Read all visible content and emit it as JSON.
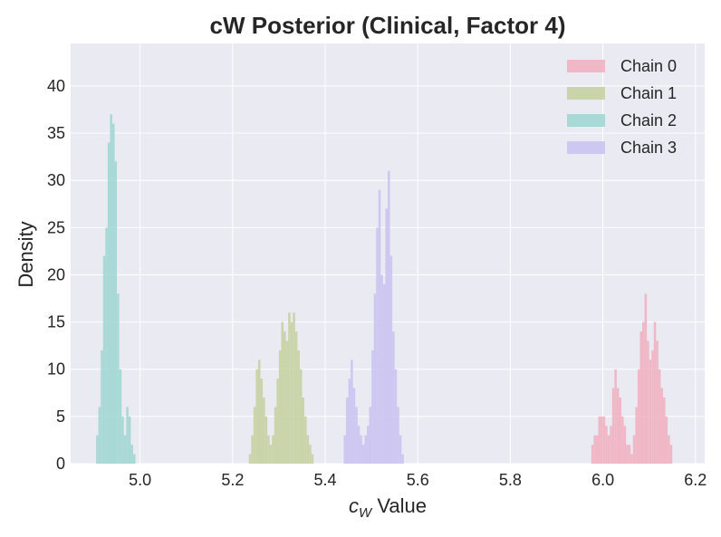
{
  "chart_data": {
    "type": "histogram",
    "title": "cW Posterior (Clinical, Factor 4)",
    "xlabel_var": "c",
    "xlabel_sub": "W",
    "xlabel_rest": " Value",
    "ylabel": "Density",
    "xlim": [
      4.85,
      6.22
    ],
    "ylim": [
      0,
      44.5
    ],
    "xticks": [
      5.0,
      5.2,
      5.4,
      5.6,
      5.8,
      6.0,
      6.2
    ],
    "xtick_labels": [
      "5.0",
      "5.2",
      "5.4",
      "5.6",
      "5.8",
      "6.0",
      "6.2"
    ],
    "yticks": [
      0,
      5,
      10,
      15,
      20,
      25,
      30,
      35,
      40
    ],
    "ytick_labels": [
      "0",
      "5",
      "10",
      "15",
      "20",
      "25",
      "30",
      "35",
      "40"
    ],
    "grid": true,
    "legend_position": "top-right",
    "colors": {
      "plot_background": "#eaeaf2",
      "grid": "#ffffff",
      "text": "#262626"
    },
    "series": [
      {
        "name": "Chain 0",
        "color": "#f1b2c1",
        "bins": [
          [
            5.975,
            2
          ],
          [
            5.98,
            3
          ],
          [
            5.985,
            3
          ],
          [
            5.99,
            5
          ],
          [
            5.995,
            5
          ],
          [
            6.0,
            5
          ],
          [
            6.005,
            4
          ],
          [
            6.01,
            3
          ],
          [
            6.015,
            4
          ],
          [
            6.02,
            8
          ],
          [
            6.025,
            10
          ],
          [
            6.03,
            8
          ],
          [
            6.035,
            7
          ],
          [
            6.04,
            5
          ],
          [
            6.045,
            4
          ],
          [
            6.05,
            2
          ],
          [
            6.055,
            2
          ],
          [
            6.06,
            1
          ],
          [
            6.065,
            3
          ],
          [
            6.07,
            6
          ],
          [
            6.075,
            10
          ],
          [
            6.08,
            14
          ],
          [
            6.085,
            15
          ],
          [
            6.09,
            18
          ],
          [
            6.095,
            13
          ],
          [
            6.1,
            11
          ],
          [
            6.105,
            12
          ],
          [
            6.11,
            15
          ],
          [
            6.115,
            13
          ],
          [
            6.12,
            10
          ],
          [
            6.125,
            8
          ],
          [
            6.13,
            7
          ],
          [
            6.135,
            5
          ],
          [
            6.14,
            3
          ],
          [
            6.145,
            2
          ]
        ]
      },
      {
        "name": "Chain 1",
        "color": "#c7d1a2",
        "bins": [
          [
            5.235,
            1
          ],
          [
            5.24,
            3
          ],
          [
            5.245,
            6
          ],
          [
            5.25,
            10
          ],
          [
            5.255,
            11
          ],
          [
            5.26,
            9
          ],
          [
            5.265,
            7
          ],
          [
            5.27,
            5
          ],
          [
            5.275,
            3
          ],
          [
            5.28,
            2
          ],
          [
            5.285,
            3
          ],
          [
            5.29,
            6
          ],
          [
            5.295,
            9
          ],
          [
            5.3,
            12
          ],
          [
            5.305,
            15
          ],
          [
            5.31,
            14
          ],
          [
            5.315,
            13
          ],
          [
            5.32,
            16
          ],
          [
            5.325,
            15
          ],
          [
            5.33,
            16
          ],
          [
            5.335,
            14
          ],
          [
            5.34,
            12
          ],
          [
            5.345,
            10
          ],
          [
            5.35,
            7
          ],
          [
            5.355,
            5
          ],
          [
            5.36,
            3
          ],
          [
            5.365,
            2
          ],
          [
            5.37,
            1
          ]
        ]
      },
      {
        "name": "Chain 2",
        "color": "#a2d7d3",
        "bins": [
          [
            4.905,
            3
          ],
          [
            4.91,
            6
          ],
          [
            4.915,
            12
          ],
          [
            4.92,
            22
          ],
          [
            4.925,
            25
          ],
          [
            4.93,
            34
          ],
          [
            4.935,
            37
          ],
          [
            4.94,
            36
          ],
          [
            4.945,
            32
          ],
          [
            4.95,
            18
          ],
          [
            4.955,
            10
          ],
          [
            4.96,
            5
          ],
          [
            4.965,
            3
          ],
          [
            4.97,
            6
          ],
          [
            4.975,
            5
          ],
          [
            4.98,
            2
          ],
          [
            4.985,
            1
          ]
        ]
      },
      {
        "name": "Chain 3",
        "color": "#cac3f1",
        "bins": [
          [
            5.44,
            3
          ],
          [
            5.445,
            7
          ],
          [
            5.45,
            9
          ],
          [
            5.455,
            11
          ],
          [
            5.46,
            8
          ],
          [
            5.465,
            6
          ],
          [
            5.47,
            4
          ],
          [
            5.475,
            3
          ],
          [
            5.48,
            2
          ],
          [
            5.485,
            3
          ],
          [
            5.49,
            4
          ],
          [
            5.495,
            6
          ],
          [
            5.5,
            12
          ],
          [
            5.505,
            18
          ],
          [
            5.51,
            25
          ],
          [
            5.515,
            29
          ],
          [
            5.52,
            20
          ],
          [
            5.525,
            19
          ],
          [
            5.53,
            27
          ],
          [
            5.535,
            31
          ],
          [
            5.54,
            22
          ],
          [
            5.545,
            14
          ],
          [
            5.55,
            10
          ],
          [
            5.555,
            6
          ],
          [
            5.56,
            3
          ],
          [
            5.565,
            1
          ]
        ]
      }
    ]
  }
}
